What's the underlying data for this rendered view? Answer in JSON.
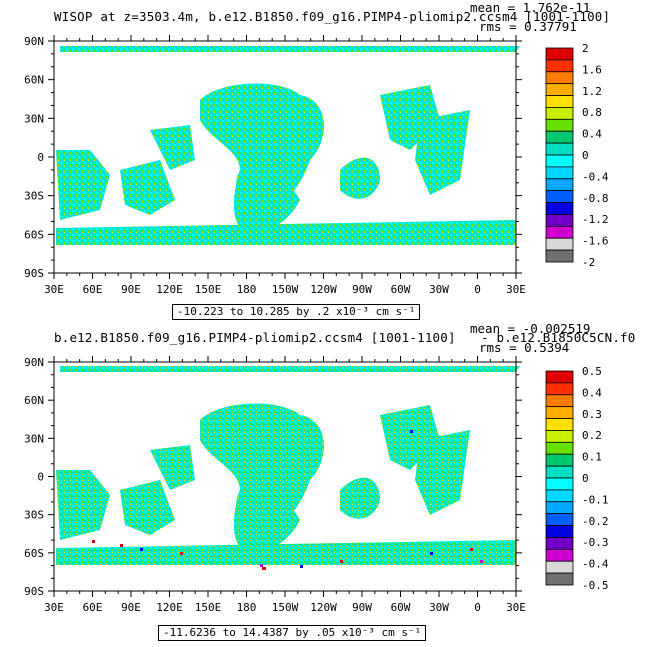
{
  "panels": [
    {
      "title": "WISOP at z=3503.4m, b.e12.B1850.f09_g16.PIMP4-pliomip2.ccsm4 [1001-1100]",
      "mean": "mean = 1.762e-11",
      "rms": "rms = 0.37791",
      "range": "-10.223 to 10.285 by .2 x10⁻³ cm s⁻¹",
      "colorbar_labels": [
        "2",
        "1.6",
        "1.2",
        "0.8",
        "0.4",
        "0",
        "-0.4",
        "-0.8",
        "-1.2",
        "-1.6",
        "-2"
      ]
    },
    {
      "title": "b.e12.B1850.f09_g16.PIMP4-pliomip2.ccsm4 [1001-1100]",
      "subtitle_right": "- b.e12.B1850C5CN.f0",
      "mean": "mean = -0.002519",
      "rms": "rms = 0.5394",
      "range": "-11.6236 to 14.4387 by .05 x10⁻³ cm s⁻¹",
      "colorbar_labels": [
        "0.5",
        "0.4",
        "0.3",
        "0.2",
        "0.1",
        "0",
        "-0.1",
        "-0.2",
        "-0.3",
        "-0.4",
        "-0.5"
      ]
    }
  ],
  "lat_ticks": [
    "90N",
    "60N",
    "30N",
    "0",
    "30S",
    "60S",
    "90S"
  ],
  "lon_ticks": [
    "30E",
    "60E",
    "90E",
    "120E",
    "150E",
    "180",
    "150W",
    "120W",
    "90W",
    "60W",
    "30W",
    "0",
    "30E"
  ],
  "colorbar_colors": [
    "#e00000",
    "#ff3000",
    "#ff7a00",
    "#ffae00",
    "#ffe000",
    "#c8f000",
    "#66e000",
    "#00c870",
    "#00e0c0",
    "#00ffff",
    "#00d8ff",
    "#00a8ff",
    "#0060ff",
    "#0000e0",
    "#7000c8",
    "#d000d0",
    "#d8d8d8",
    "#707070"
  ]
}
